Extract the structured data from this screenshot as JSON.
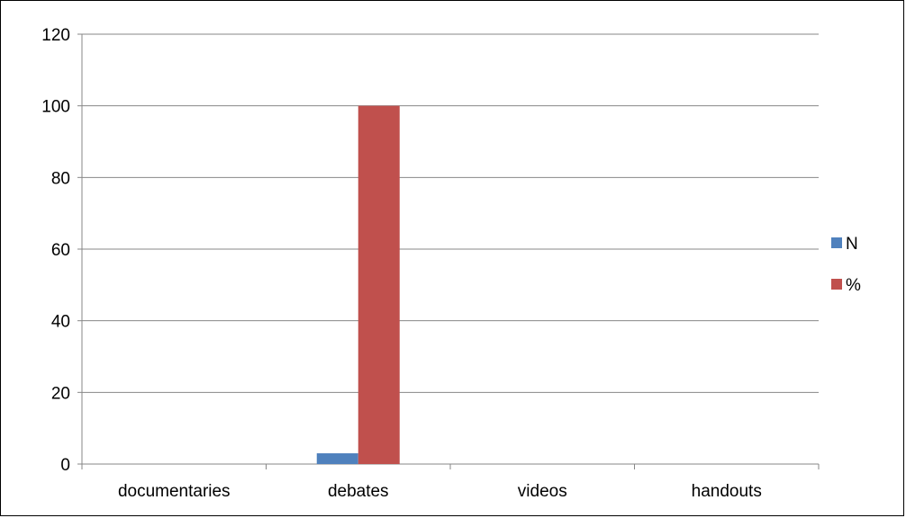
{
  "chart_data": {
    "type": "bar",
    "title": "",
    "xlabel": "",
    "ylabel": "",
    "categories": [
      "documentaries",
      "debates",
      "videos",
      "handouts"
    ],
    "series": [
      {
        "name": "N",
        "color": "#4f81bd",
        "values": [
          0,
          3,
          0,
          0
        ]
      },
      {
        "name": "%",
        "color": "#c0504d",
        "values": [
          0,
          100,
          0,
          0
        ]
      }
    ],
    "ylim": [
      0,
      120
    ],
    "yticks": [
      0,
      20,
      40,
      60,
      80,
      100,
      120
    ],
    "grid": true,
    "legend": "right"
  }
}
